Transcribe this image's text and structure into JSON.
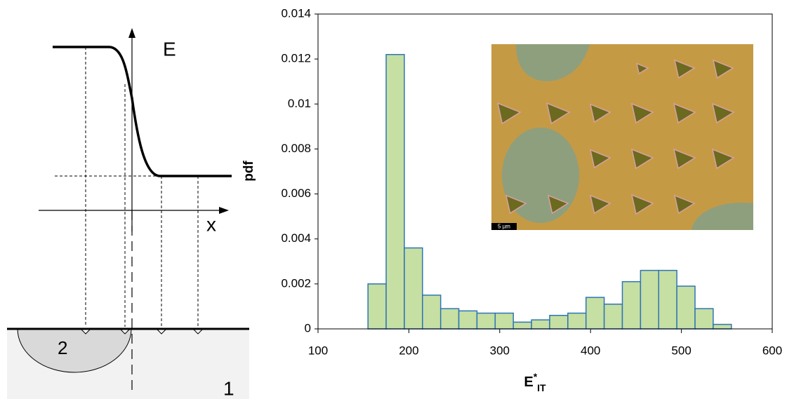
{
  "schematic": {
    "axis_y_label": "E",
    "axis_x_label": "x",
    "region_inclusion": "2",
    "region_matrix": "1"
  },
  "chart_data": {
    "type": "histogram",
    "y_label": "pdf",
    "x_label": {
      "base": "E",
      "sup": "*",
      "sub": "IT"
    },
    "bins": [
      155,
      175,
      195,
      215,
      235,
      255,
      275,
      295,
      315,
      335,
      355,
      375,
      395,
      415,
      435,
      455,
      475,
      495,
      515,
      535,
      555
    ],
    "values": [
      0.002,
      0.0122,
      0.0036,
      0.0015,
      0.0009,
      0.0008,
      0.0007,
      0.0007,
      0.0003,
      0.0004,
      0.0006,
      0.0007,
      0.0014,
      0.0011,
      0.0021,
      0.0026,
      0.0026,
      0.0019,
      0.0009,
      0.0002
    ],
    "color": "#c6dfa2",
    "edge_color": "#2e75b6",
    "xlim": [
      100,
      600
    ],
    "xticks": [
      100,
      200,
      300,
      400,
      500,
      600
    ],
    "ylim": [
      0,
      0.014
    ],
    "yticks": [
      0,
      0.002,
      0.004,
      0.006,
      0.008,
      0.01,
      0.012,
      0.014
    ],
    "inset": {
      "scale_bar": "5 µm"
    }
  }
}
